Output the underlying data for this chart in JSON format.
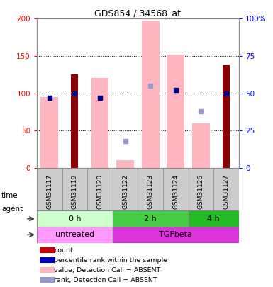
{
  "title": "GDS854 / 34568_at",
  "samples": [
    "GSM31117",
    "GSM31119",
    "GSM31120",
    "GSM31122",
    "GSM31123",
    "GSM31124",
    "GSM31126",
    "GSM31127"
  ],
  "count_values": [
    0,
    125,
    0,
    0,
    0,
    0,
    0,
    138
  ],
  "absent_value_bars": [
    95,
    0,
    120,
    10,
    197,
    152,
    60,
    0
  ],
  "rank_present_vals": [
    47,
    50,
    47,
    0,
    0,
    52,
    0,
    50
  ],
  "rank_absent_vals": [
    0,
    0,
    0,
    18,
    55,
    0,
    38,
    0
  ],
  "ylim_left": [
    0,
    200
  ],
  "yticks_left": [
    0,
    50,
    100,
    150,
    200
  ],
  "ytick_labels_left": [
    "0",
    "50",
    "100",
    "150",
    "200"
  ],
  "ytick_labels_right": [
    "0",
    "25",
    "50",
    "75",
    "100%"
  ],
  "color_count": "#8B0000",
  "color_absent_val": "#FFB6C1",
  "color_rank_present": "#00008B",
  "color_rank_absent": "#9999CC",
  "color_xtick_bg": "#CCCCCC",
  "time_groups": [
    {
      "label": "0 h",
      "samples_idx": [
        0,
        1,
        2
      ],
      "color": "#CCFFCC"
    },
    {
      "label": "2 h",
      "samples_idx": [
        3,
        4,
        5
      ],
      "color": "#44CC44"
    },
    {
      "label": "4 h",
      "samples_idx": [
        6,
        7
      ],
      "color": "#22BB22"
    }
  ],
  "agent_groups": [
    {
      "label": "untreated",
      "samples_idx": [
        0,
        1,
        2
      ],
      "color": "#FF99FF"
    },
    {
      "label": "TGFbeta",
      "samples_idx": [
        3,
        4,
        5,
        6,
        7
      ],
      "color": "#DD33DD"
    }
  ],
  "legend_items": [
    {
      "label": "count",
      "color": "#CC0000"
    },
    {
      "label": "percentile rank within the sample",
      "color": "#0000CC"
    },
    {
      "label": "value, Detection Call = ABSENT",
      "color": "#FFB6C1"
    },
    {
      "label": "rank, Detection Call = ABSENT",
      "color": "#9999CC"
    }
  ],
  "bar_width": 0.5,
  "absent_bar_width": 0.7
}
